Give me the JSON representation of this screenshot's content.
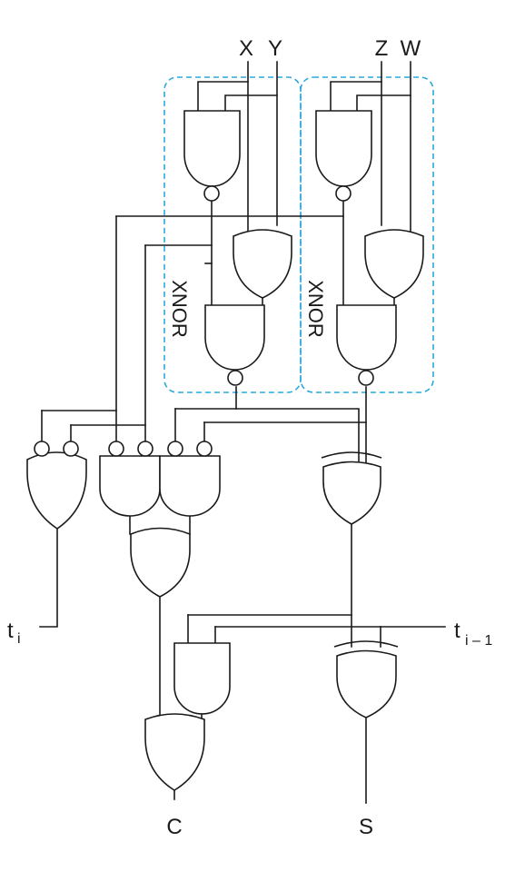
{
  "inputs": {
    "x": "X",
    "y": "Y",
    "z": "Z",
    "w": "W",
    "t_main": "t",
    "t_sub": "i",
    "tprev_main": "t",
    "tprev_sub": "i – 1"
  },
  "outputs": {
    "carry": "C",
    "sum": "S"
  },
  "groups": {
    "left_label": "XNOR",
    "right_label": "XNOR"
  },
  "colors": {
    "wire": "#1a1a1a",
    "group_box": "#29a9e0",
    "group_text": "#29a9e0"
  }
}
